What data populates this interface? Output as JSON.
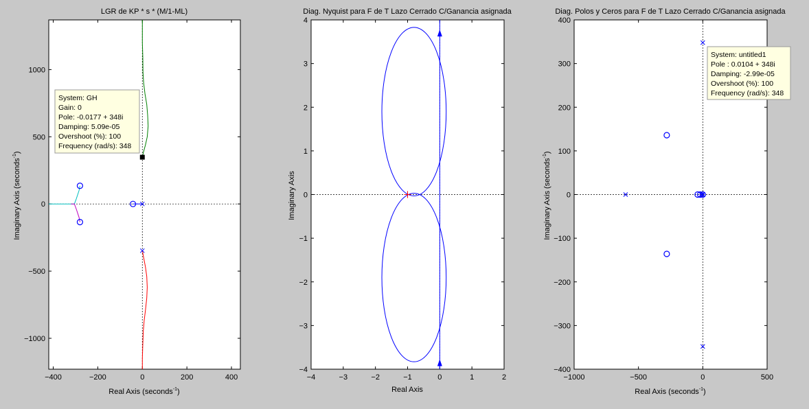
{
  "chart_data": [
    {
      "type": "line",
      "title": "LGR de KP * s * (M/1-ML)",
      "xlabel": "Real Axis (seconds",
      "xlabel_sup": "-1",
      "xlabel_end": ")",
      "ylabel": "Imaginary Axis (seconds",
      "ylabel_sup": "-1",
      "ylabel_end": ")",
      "xlim": [
        -420,
        440
      ],
      "ylim": [
        -1230,
        1370
      ],
      "x_ticks": [
        -400,
        -200,
        0,
        200,
        400
      ],
      "x_tick_labels": [
        "-400",
        "-200",
        "0",
        "200",
        "400"
      ],
      "y_ticks": [
        -1000,
        -500,
        0,
        500,
        1000
      ],
      "y_tick_labels": [
        "-1000",
        "-500",
        "0",
        "500",
        "1000"
      ],
      "grid": false,
      "series": [
        {
          "color": "#007f00",
          "points": [
            [
              0,
              1370
            ],
            [
              0,
              1200
            ],
            [
              2,
              1100
            ],
            [
              3,
              980
            ],
            [
              6,
              900
            ],
            [
              12,
              820
            ],
            [
              20,
              740
            ],
            [
              24,
              660
            ],
            [
              26,
              580
            ],
            [
              22,
              500
            ],
            [
              14,
              440
            ],
            [
              4,
              380
            ],
            [
              0,
              348
            ]
          ]
        },
        {
          "color": "#ff0000",
          "points": [
            [
              0,
              -1230
            ],
            [
              0,
              -1150
            ],
            [
              2,
              -1050
            ],
            [
              4,
              -950
            ],
            [
              8,
              -870
            ],
            [
              14,
              -790
            ],
            [
              20,
              -700
            ],
            [
              22,
              -620
            ],
            [
              20,
              -540
            ],
            [
              14,
              -470
            ],
            [
              6,
              -400
            ],
            [
              0,
              -348
            ]
          ]
        },
        {
          "color": "#00bfbf",
          "points": [
            [
              -280,
              135
            ],
            [
              -284,
              100
            ],
            [
              -296,
              40
            ],
            [
              -305,
              0
            ],
            [
              -340,
              0
            ],
            [
              -420,
              0
            ]
          ]
        },
        {
          "color": "#bf00bf",
          "points": [
            [
              -280,
              -135
            ],
            [
              -284,
              -100
            ],
            [
              -296,
              -40
            ],
            [
              -305,
              0
            ],
            [
              -320,
              0
            ]
          ]
        },
        {
          "color": "#0000ff",
          "points": [
            [
              -42,
              0
            ],
            [
              -30,
              0
            ],
            [
              -15,
              0
            ],
            [
              0,
              0
            ]
          ]
        }
      ],
      "poles": [
        [
          0,
          0
        ],
        [
          0,
          348
        ],
        [
          0,
          -348
        ]
      ],
      "zeros": [
        [
          -280,
          135
        ],
        [
          -280,
          -135
        ],
        [
          -42,
          0
        ]
      ],
      "selected_point": [
        0,
        348
      ],
      "datatip": {
        "lines": [
          "System: GH",
          "Gain: 0",
          "Pole: -0.0177 + 348i",
          "Damping: 5.09e-05",
          "Overshoot (%): 100",
          "Frequency (rad/s): 348"
        ]
      }
    },
    {
      "type": "line",
      "title": "Diag. Nyquist para F de T Lazo Cerrado C/Ganancia asignada",
      "xlabel": "Real Axis",
      "ylabel": "Imaginary Axis",
      "xlim": [
        -4,
        2
      ],
      "ylim": [
        -4,
        4
      ],
      "x_ticks": [
        -4,
        -3,
        -2,
        -1,
        0,
        1,
        2
      ],
      "x_tick_labels": [
        "-4",
        "-3",
        "-2",
        "-1",
        "0",
        "1",
        "2"
      ],
      "y_ticks": [
        -4,
        -3,
        -2,
        -1,
        0,
        1,
        2,
        3,
        4
      ],
      "y_tick_labels": [
        "-4",
        "-3",
        "-2",
        "-1",
        "0",
        "1",
        "2",
        "3",
        "4"
      ],
      "grid": false,
      "curve_color": "#0000ff",
      "upper_loop": {
        "cx": -0.8,
        "cy": 1.9,
        "rx": 1.0,
        "ry": 1.93
      },
      "lower_loop": {
        "cx": -0.8,
        "cy": -1.9,
        "rx": 1.0,
        "ry": 1.93
      },
      "vertical_line_x": 0,
      "arrows_y": [
        3.7,
        -3.85
      ],
      "critical_point": [
        -1,
        0
      ]
    },
    {
      "type": "scatter",
      "title": "Diag. Polos y Ceros para F de T Lazo Cerrado C/Ganancia asignada",
      "xlabel": "Real Axis (seconds",
      "xlabel_sup": "-1",
      "xlabel_end": ")",
      "ylabel": "Imaginary Axis (seconds",
      "ylabel_sup": "-1",
      "ylabel_end": ")",
      "xlim": [
        -1000,
        500
      ],
      "ylim": [
        -400,
        400
      ],
      "x_ticks": [
        -1000,
        -500,
        0,
        500
      ],
      "x_tick_labels": [
        "-1000",
        "-500",
        "0",
        "500"
      ],
      "y_ticks": [
        -400,
        -300,
        -200,
        -100,
        0,
        100,
        200,
        300,
        400
      ],
      "y_tick_labels": [
        "-400",
        "-300",
        "-200",
        "-100",
        "0",
        "100",
        "200",
        "300",
        "400"
      ],
      "grid": false,
      "poles": [
        [
          0,
          348
        ],
        [
          0,
          -348
        ],
        [
          -600,
          0
        ],
        [
          0,
          0
        ],
        [
          -5,
          0
        ]
      ],
      "zeros": [
        [
          -280,
          136
        ],
        [
          -280,
          -136
        ],
        [
          -40,
          0
        ],
        [
          -20,
          0
        ],
        [
          0,
          0
        ]
      ],
      "datatip": {
        "lines": [
          "System: untitled1",
          "Pole : 0.0104 + 348i",
          "Damping: -2.99e-05",
          "Overshoot (%): 100",
          "Frequency (rad/s): 348"
        ]
      }
    }
  ]
}
